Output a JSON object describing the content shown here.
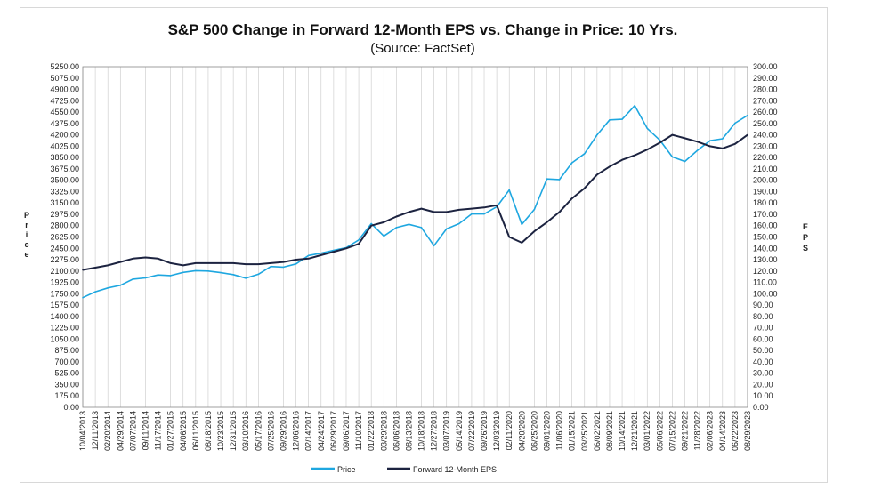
{
  "chart_data": {
    "type": "line",
    "title": "S&P 500 Change in Forward 12-Month EPS vs. Change in Price: 10 Yrs.",
    "subtitle": "(Source: FactSet)",
    "ylabel": "Price",
    "y2label": "EPS",
    "ylim": [
      0,
      5250
    ],
    "y2lim": [
      0,
      300
    ],
    "yticks": [
      "0.00",
      "175.00",
      "350.00",
      "525.00",
      "700.00",
      "875.00",
      "1050.00",
      "1225.00",
      "1400.00",
      "1575.00",
      "1750.00",
      "1925.00",
      "2100.00",
      "2275.00",
      "2450.00",
      "2625.00",
      "2800.00",
      "2975.00",
      "3150.00",
      "3325.00",
      "3500.00",
      "3675.00",
      "3850.00",
      "4025.00",
      "4200.00",
      "4375.00",
      "4550.00",
      "4725.00",
      "4900.00",
      "5075.00",
      "5250.00"
    ],
    "y2ticks": [
      "0.00",
      "10.00",
      "20.00",
      "30.00",
      "40.00",
      "50.00",
      "60.00",
      "70.00",
      "80.00",
      "90.00",
      "100.00",
      "110.00",
      "120.00",
      "130.00",
      "140.00",
      "150.00",
      "160.00",
      "170.00",
      "180.00",
      "190.00",
      "200.00",
      "210.00",
      "220.00",
      "230.00",
      "240.00",
      "250.00",
      "260.00",
      "270.00",
      "280.00",
      "290.00",
      "300.00"
    ],
    "x": [
      "10/04/2013",
      "12/11/2013",
      "02/20/2014",
      "04/29/2014",
      "07/07/2014",
      "09/11/2014",
      "11/17/2014",
      "01/27/2015",
      "04/06/2015",
      "06/11/2015",
      "08/18/2015",
      "10/23/2015",
      "12/31/2015",
      "03/10/2016",
      "05/17/2016",
      "07/25/2016",
      "09/29/2016",
      "12/06/2016",
      "02/14/2017",
      "04/24/2017",
      "06/29/2017",
      "09/06/2017",
      "11/10/2017",
      "01/22/2018",
      "03/29/2018",
      "06/06/2018",
      "08/13/2018",
      "10/18/2018",
      "12/27/2018",
      "03/07/2019",
      "05/14/2019",
      "07/22/2019",
      "09/26/2019",
      "12/03/2019",
      "02/11/2020",
      "04/20/2020",
      "06/25/2020",
      "09/01/2020",
      "11/06/2020",
      "01/15/2021",
      "03/25/2021",
      "06/02/2021",
      "08/09/2021",
      "10/14/2021",
      "12/21/2021",
      "03/01/2022",
      "05/06/2022",
      "07/15/2022",
      "09/21/2022",
      "11/28/2022",
      "02/06/2023",
      "04/14/2023",
      "06/22/2023",
      "08/29/2023"
    ],
    "series": [
      {
        "name": "Price",
        "axis": "left",
        "color": "#1ea7e0",
        "values": [
          1690,
          1780,
          1840,
          1880,
          1975,
          1995,
          2040,
          2030,
          2080,
          2105,
          2100,
          2075,
          2045,
          1990,
          2050,
          2170,
          2160,
          2210,
          2340,
          2375,
          2420,
          2460,
          2580,
          2830,
          2640,
          2770,
          2820,
          2770,
          2490,
          2750,
          2830,
          2980,
          2980,
          3090,
          3350,
          2820,
          3050,
          3520,
          3510,
          3770,
          3910,
          4200,
          4430,
          4440,
          4650,
          4300,
          4120,
          3860,
          3790,
          3960,
          4110,
          4140,
          4380,
          4500
        ]
      },
      {
        "name": "Forward 12-Month EPS",
        "axis": "right",
        "color": "#1c2340",
        "values": [
          121,
          123,
          125,
          128,
          131,
          132,
          131,
          127,
          125,
          127,
          127,
          127,
          127,
          126,
          126,
          127,
          128,
          130,
          131,
          134,
          137,
          140,
          144,
          160,
          163,
          168,
          172,
          175,
          172,
          172,
          174,
          175,
          176,
          178,
          150,
          145,
          155,
          163,
          172,
          184,
          193,
          205,
          212,
          218,
          222,
          227,
          233,
          240,
          237,
          234,
          230,
          228,
          232,
          240
        ]
      }
    ],
    "grid": "vertical",
    "legend": "bottom-center"
  }
}
